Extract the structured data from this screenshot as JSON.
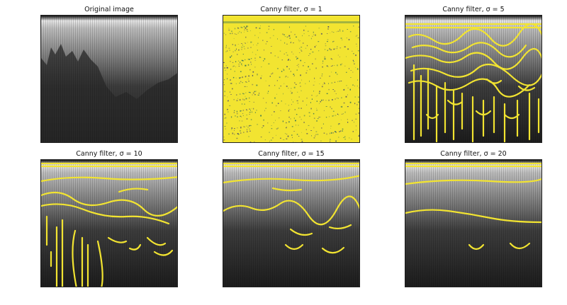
{
  "panels": [
    {
      "title": "Original image"
    },
    {
      "title": "Canny filter, σ = 1"
    },
    {
      "title": "Canny filter, σ = 5"
    },
    {
      "title": "Canny filter, σ = 10"
    },
    {
      "title": "Canny filter, σ = 15"
    },
    {
      "title": "Canny filter, σ = 20"
    }
  ],
  "colors": {
    "edge": "#f2e431",
    "background": "#3a2a5c",
    "grey_top": "#d8d8d8",
    "grey_dark": "#1e1e1e"
  }
}
